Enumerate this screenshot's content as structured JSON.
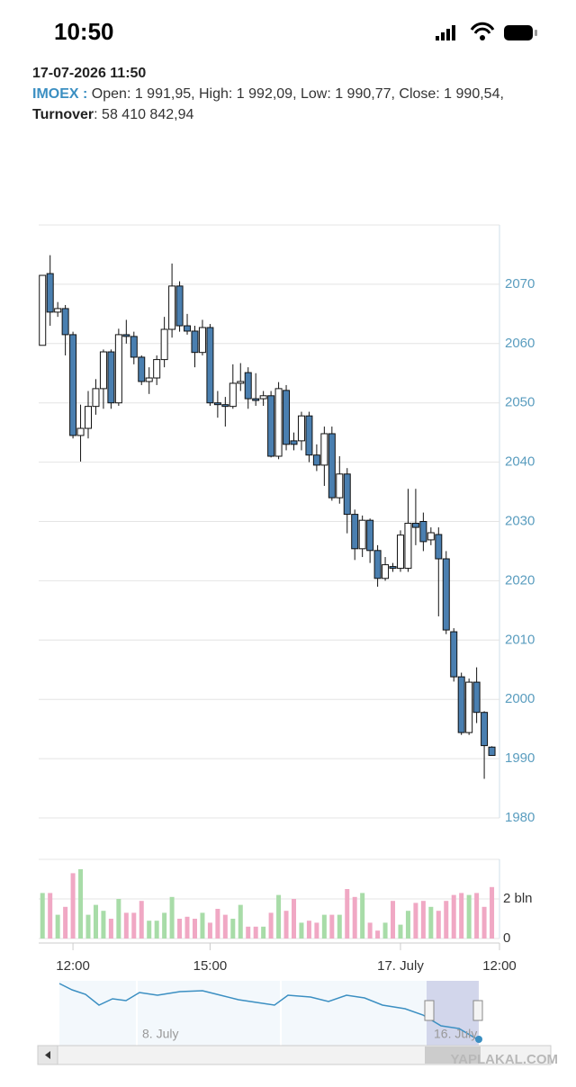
{
  "status_bar": {
    "time": "10:50"
  },
  "header": {
    "date": "17-07-2026 11:50",
    "ticker": "IMOEX :",
    "ohlc": "Open: 1 991,95, High: 1 992,09, Low: 1 990,77, Close: 1 990,54,",
    "turnover_label": "Turnover",
    "turnover_value": ": 58 410 842,94"
  },
  "chart_data": [
    {
      "type": "candlestick",
      "up_color": "#ffffff",
      "down_color": "#4a7fb0",
      "open": [
        2059.7,
        2071.8,
        2065.3,
        2065.9,
        2061.5,
        2044.5,
        2045.7,
        2049.4,
        2052.4,
        2058.6,
        2050,
        2061.5,
        2061.2,
        2057.7,
        2053.6,
        2054.2,
        2057.3,
        2062.4,
        2069.7,
        2063,
        2062.1,
        2058.5,
        2062.7,
        2050,
        2049.7,
        2049.4,
        2053.3,
        2055.1,
        2050.7,
        2050.7,
        2051.2,
        2041,
        2052.1,
        2043.6,
        2043.6,
        2047.8,
        2041.2,
        2039.5,
        2044.8,
        2034,
        2038,
        2031.2,
        2025.4,
        2030.2,
        2025.1,
        2020.4,
        2022.4,
        2022.1,
        2022.1,
        2029.7,
        2030,
        2026.9,
        2027.8,
        2023.7,
        2011.4,
        2003.8,
        1994.4,
        2002.9,
        1997.8,
        1991.95
      ],
      "high": [
        2071.5,
        2074.9,
        2067,
        2066.5,
        2062,
        2049.7,
        2052,
        2054,
        2059,
        2059,
        2062.5,
        2064,
        2062,
        2058,
        2056,
        2058,
        2064.5,
        2073.5,
        2070.5,
        2065,
        2063,
        2064,
        2063.3,
        2052,
        2051,
        2056.5,
        2056.7,
        2056,
        2055,
        2052,
        2052,
        2053.5,
        2053,
        2045,
        2048.5,
        2048.5,
        2043,
        2046,
        2046,
        2041,
        2039,
        2032,
        2031,
        2030.5,
        2026,
        2024,
        2023,
        2028.5,
        2035.5,
        2035.5,
        2031.5,
        2029,
        2029,
        2025,
        2012,
        2004.5,
        2003.5,
        2005.4,
        1998,
        1992.09
      ],
      "low": [
        2059.7,
        2063,
        2064.5,
        2058,
        2044,
        2040.1,
        2044,
        2048,
        2049,
        2049,
        2049.5,
        2060,
        2056.5,
        2053,
        2051.5,
        2053,
        2056,
        2061,
        2062,
        2061.5,
        2056,
        2058,
        2049.5,
        2047.5,
        2046,
        2049,
        2052,
        2049,
        2049.5,
        2049.5,
        2040.8,
        2040.5,
        2042,
        2042,
        2042,
        2040,
        2038.5,
        2036,
        2033.5,
        2033,
        2028,
        2023.5,
        2024,
        2023,
        2019,
        2020,
        2021.5,
        2021.5,
        2021.5,
        2026,
        2025,
        2026,
        2014,
        2011,
        2003,
        1994,
        1994,
        1996,
        1986.6,
        1990.77
      ],
      "close": [
        2071.5,
        2065.3,
        2065.9,
        2061.5,
        2044.5,
        2045.7,
        2049.4,
        2052.4,
        2058.6,
        2050,
        2061.5,
        2061.2,
        2057.7,
        2053.6,
        2054.2,
        2057.3,
        2062.4,
        2069.7,
        2063,
        2062.1,
        2058.5,
        2062.7,
        2050,
        2049.7,
        2049.4,
        2053.3,
        2053.6,
        2050.7,
        2050.4,
        2051.2,
        2041,
        2052.4,
        2043,
        2043,
        2047.8,
        2041.2,
        2039.5,
        2044.8,
        2034,
        2038,
        2031.2,
        2025.4,
        2030.2,
        2025.1,
        2020.4,
        2022.7,
        2022.1,
        2027.7,
        2029.7,
        2029,
        2026.6,
        2028.1,
        2023.7,
        2011.7,
        2003.8,
        1994.4,
        2002.9,
        1997.8,
        1992.2,
        1990.54
      ],
      "ylim": [
        1980,
        2080
      ],
      "yticks": [
        1980,
        1990,
        2000,
        2010,
        2020,
        2030,
        2040,
        2050,
        2060,
        2070
      ],
      "grid": true,
      "xlim": [
        -0.5,
        60
      ],
      "xticks": [
        {
          "value": 4,
          "label": "12:00"
        },
        {
          "value": 22,
          "label": "15:00"
        },
        {
          "value": 47,
          "label": "17. July"
        },
        {
          "value": 60,
          "label": "12:00"
        }
      ]
    },
    {
      "type": "bar",
      "up_color": "#a8dca8",
      "down_color": "#f0a8c4",
      "values": [
        2.3,
        2.3,
        1.2,
        1.6,
        3.3,
        3.5,
        1.2,
        1.7,
        1.4,
        1.0,
        2.0,
        1.3,
        1.3,
        1.9,
        0.9,
        0.9,
        1.3,
        2.1,
        1.0,
        1.1,
        1.0,
        1.3,
        0.8,
        1.5,
        1.2,
        1.0,
        1.7,
        0.6,
        0.6,
        0.6,
        1.3,
        2.2,
        1.4,
        2.0,
        0.8,
        0.9,
        0.8,
        1.2,
        1.2,
        1.2,
        2.5,
        2.1,
        2.3,
        0.8,
        0.4,
        0.8,
        1.9,
        0.7,
        1.4,
        1.8,
        1.9,
        1.6,
        1.4,
        1.9,
        2.2,
        2.3,
        2.2,
        2.3,
        1.6,
        2.6
      ],
      "ylim": [
        0,
        4
      ],
      "yticks": [
        0,
        {
          "value": 2,
          "label": "2 bln"
        }
      ]
    }
  ],
  "navigator": {
    "labels": [
      "8. July",
      "16. July"
    ]
  },
  "watermark": "YAPLAKAL.COM"
}
